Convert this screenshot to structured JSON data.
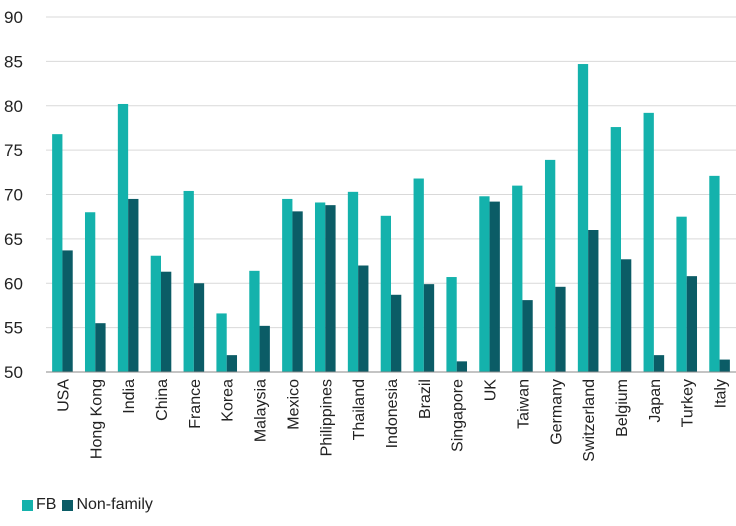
{
  "chart_data": {
    "type": "bar",
    "title": "",
    "xlabel": "",
    "ylabel": "",
    "ylim": [
      50,
      90
    ],
    "yticks": [
      50,
      55,
      60,
      65,
      70,
      75,
      80,
      85,
      90
    ],
    "grid": true,
    "legend_position": "bottom-left",
    "categories": [
      "USA",
      "Hong Kong",
      "India",
      "China",
      "France",
      "Korea",
      "Malaysia",
      "Mexico",
      "Philippines",
      "Thailand",
      "Indonesia",
      "Brazil",
      "Singapore",
      "UK",
      "Taiwan",
      "Germany",
      "Switzerland",
      "Belgium",
      "Japan",
      "Turkey",
      "Italy"
    ],
    "series": [
      {
        "name": "FB",
        "color": "#14B2AC",
        "values": [
          76.8,
          68.0,
          80.2,
          63.1,
          70.4,
          56.6,
          61.4,
          69.5,
          69.1,
          70.3,
          67.6,
          71.8,
          60.7,
          69.8,
          71.0,
          73.9,
          84.7,
          77.6,
          79.2,
          67.5,
          72.1
        ]
      },
      {
        "name": "Non-family",
        "color": "#0B5C66",
        "values": [
          63.7,
          55.5,
          69.5,
          61.3,
          60.0,
          51.9,
          55.2,
          68.1,
          68.8,
          62.0,
          58.7,
          59.9,
          51.2,
          69.2,
          58.1,
          59.6,
          66.0,
          62.7,
          51.9,
          60.8,
          51.4
        ]
      }
    ]
  },
  "legend": {
    "items": [
      {
        "label": "FB",
        "color": "#14B2AC"
      },
      {
        "label": "Non-family",
        "color": "#0B5C66"
      }
    ]
  }
}
